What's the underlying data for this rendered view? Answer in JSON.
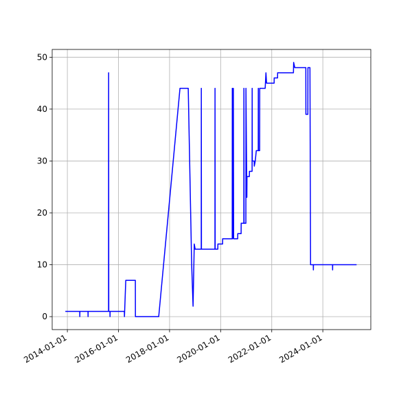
{
  "chart_data": {
    "type": "line",
    "color": "#0000ff",
    "grid": true,
    "xlim": [
      "2013-05-29",
      "2025-11-17"
    ],
    "xticks": [
      "2014-01-01",
      "2016-01-01",
      "2018-01-01",
      "2020-01-01",
      "2022-01-01",
      "2024-01-01"
    ],
    "ylim": [
      -2.5,
      51.5
    ],
    "yticks": [
      0,
      10,
      20,
      30,
      40,
      50
    ],
    "x": [
      "2013-12-03",
      "2014-06-27",
      "2014-06-28",
      "2014-06-29",
      "2014-10-23",
      "2014-10-24",
      "2014-10-25",
      "2015-08-13",
      "2015-08-14",
      "2015-08-16",
      "2015-09-02",
      "2015-09-03",
      "2015-09-04",
      "2016-03-26",
      "2016-03-27",
      "2016-04-15",
      "2016-08-30",
      "2016-08-31",
      "2017-07-30",
      "2018-05-30",
      "2018-09-25",
      "2018-11-13",
      "2018-12-03",
      "2018-12-20",
      "2019-01-02",
      "2019-03-30",
      "2019-03-31",
      "2019-04-02",
      "2019-10-12",
      "2019-10-13",
      "2019-10-15",
      "2019-11-22",
      "2019-11-23",
      "2020-01-29",
      "2020-01-30",
      "2020-06-15",
      "2020-06-16",
      "2020-06-20",
      "2020-07-01",
      "2020-07-05",
      "2020-09-01",
      "2020-09-02",
      "2020-10-20",
      "2020-10-21",
      "2020-11-28",
      "2020-11-29",
      "2020-12-01",
      "2020-12-27",
      "2020-12-28",
      "2021-01-10",
      "2021-01-12",
      "2021-02-15",
      "2021-02-16",
      "2021-03-26",
      "2021-03-27",
      "2021-03-29",
      "2021-04-25",
      "2021-04-26",
      "2021-05-10",
      "2021-05-25",
      "2021-06-22",
      "2021-06-23",
      "2021-06-25",
      "2021-07-12",
      "2021-07-13",
      "2021-09-29",
      "2021-10-10",
      "2021-10-19",
      "2022-02-04",
      "2022-02-05",
      "2022-03-25",
      "2022-03-26",
      "2022-11-07",
      "2022-11-10",
      "2022-11-26",
      "2023-05-03",
      "2023-05-04",
      "2023-06-01",
      "2023-06-02",
      "2023-07-01",
      "2023-07-10",
      "2023-08-18",
      "2023-08-19",
      "2023-08-20",
      "2024-05-19",
      "2024-05-20",
      "2024-05-21",
      "2025-04-28"
    ],
    "values": [
      1,
      1,
      0,
      1,
      1,
      0,
      1,
      1,
      47,
      1,
      1,
      0,
      1,
      1,
      0,
      7,
      7,
      0,
      0,
      44,
      44,
      10,
      2,
      14,
      13,
      13,
      44,
      13,
      13,
      44,
      13,
      13,
      14,
      14,
      15,
      15,
      44,
      15,
      44,
      15,
      15,
      16,
      16,
      18,
      18,
      44,
      18,
      18,
      44,
      23,
      27,
      27,
      28,
      28,
      44,
      30,
      30,
      29,
      30,
      32,
      32,
      44,
      32,
      32,
      44,
      44,
      47,
      45,
      45,
      46,
      46,
      47,
      47,
      49,
      48,
      48,
      39,
      39,
      48,
      48,
      10,
      10,
      9,
      10,
      10,
      9,
      10,
      10
    ]
  }
}
